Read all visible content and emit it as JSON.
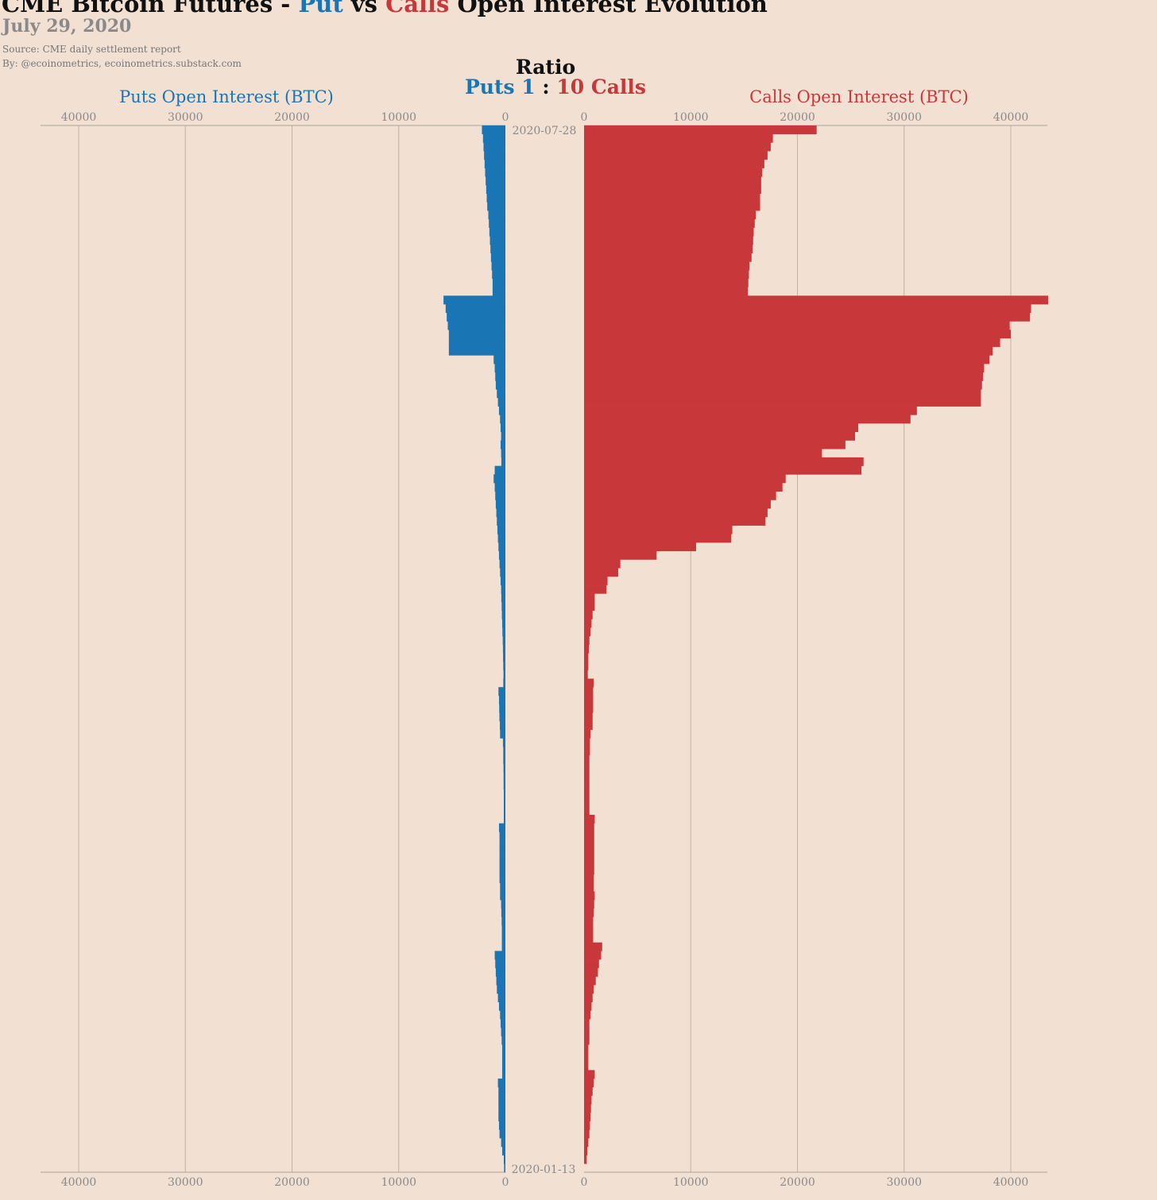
{
  "header": {
    "title_part1": "CME Bitcoin Futures - ",
    "title_put": "Put",
    "title_vs": " vs ",
    "title_calls": "Calls",
    "title_part2": " Open Interest Evolution",
    "date": "July 29, 2020",
    "source": "Source: CME daily settlement report",
    "byline": "By: @ecoinometrics, ecoinometrics.substack.com"
  },
  "ratio": {
    "title": "Ratio",
    "puts_label": "Puts 1",
    "separator": ":",
    "calls_label": "10 Calls"
  },
  "colors": {
    "puts": "#1a75b4",
    "calls": "#c8373a",
    "background": "#f2e0d2",
    "grid": "#bcb3aa",
    "tick_text": "#8a8a8a"
  },
  "chart_data": {
    "type": "bar",
    "orientation": "horizontal",
    "date_labels": {
      "top": "2020-07-28",
      "bottom": "2020-01-13"
    },
    "date_range": [
      "2020-01-13",
      "2020-07-28"
    ],
    "order": "top row = latest date (2020-07-28), bottom row = earliest (2020-01-13)",
    "left_panel": {
      "name": "Puts Open Interest (BTC)",
      "xlim": [
        0,
        43000
      ],
      "ticks": [
        40000,
        30000,
        20000,
        10000,
        0
      ]
    },
    "right_panel": {
      "name": "Calls Open Interest (BTC)",
      "xlim": [
        0,
        43500
      ],
      "ticks": [
        0,
        10000,
        20000,
        30000,
        40000
      ]
    },
    "series": [
      {
        "name": "Puts Open Interest (BTC)",
        "color": "#1a75b4",
        "values": [
          2200,
          2100,
          2050,
          2000,
          1950,
          1900,
          1850,
          1800,
          1750,
          1700,
          1600,
          1550,
          1500,
          1450,
          1400,
          1350,
          1300,
          1250,
          1200,
          1200,
          5800,
          5600,
          5500,
          5400,
          5300,
          5300,
          5300,
          1100,
          1000,
          950,
          900,
          800,
          700,
          600,
          500,
          450,
          400,
          450,
          400,
          380,
          1000,
          1100,
          1000,
          950,
          900,
          850,
          800,
          750,
          700,
          650,
          600,
          550,
          500,
          450,
          400,
          380,
          350,
          330,
          300,
          280,
          250,
          230,
          220,
          200,
          180,
          200,
          650,
          600,
          580,
          560,
          520,
          500,
          230,
          200,
          200,
          180,
          170,
          170,
          150,
          150,
          150,
          150,
          600,
          550,
          550,
          550,
          550,
          550,
          550,
          500,
          500,
          400,
          380,
          350,
          330,
          330,
          330,
          1000,
          950,
          900,
          850,
          800,
          700,
          600,
          500,
          450,
          400,
          350,
          300,
          300,
          300,
          300,
          700,
          650,
          650,
          650,
          650,
          600,
          550,
          400,
          300,
          150,
          120
        ]
      },
      {
        "name": "Calls Open Interest (BTC)",
        "color": "#c8373a",
        "values": [
          21800,
          17700,
          17500,
          17200,
          16900,
          16700,
          16600,
          16600,
          16500,
          16500,
          16100,
          16000,
          15900,
          15850,
          15800,
          15700,
          15500,
          15450,
          15400,
          15350,
          43500,
          41900,
          41800,
          39900,
          40000,
          39000,
          38300,
          38000,
          37500,
          37400,
          37300,
          37200,
          37200,
          31200,
          30600,
          25700,
          25400,
          24500,
          22300,
          26200,
          26000,
          18900,
          18600,
          18000,
          17500,
          17200,
          17000,
          13900,
          13800,
          10500,
          6800,
          3400,
          3200,
          2200,
          2100,
          1000,
          1000,
          800,
          700,
          600,
          500,
          450,
          400,
          400,
          350,
          900,
          850,
          850,
          850,
          800,
          800,
          600,
          550,
          550,
          500,
          500,
          500,
          500,
          500,
          500,
          500,
          1000,
          950,
          950,
          950,
          950,
          950,
          950,
          900,
          900,
          1000,
          950,
          900,
          850,
          850,
          850,
          1700,
          1600,
          1400,
          1300,
          1100,
          900,
          800,
          700,
          600,
          500,
          500,
          500,
          400,
          400,
          400,
          1000,
          900,
          800,
          700,
          650,
          600,
          550,
          500,
          400,
          300,
          250
        ]
      }
    ]
  }
}
